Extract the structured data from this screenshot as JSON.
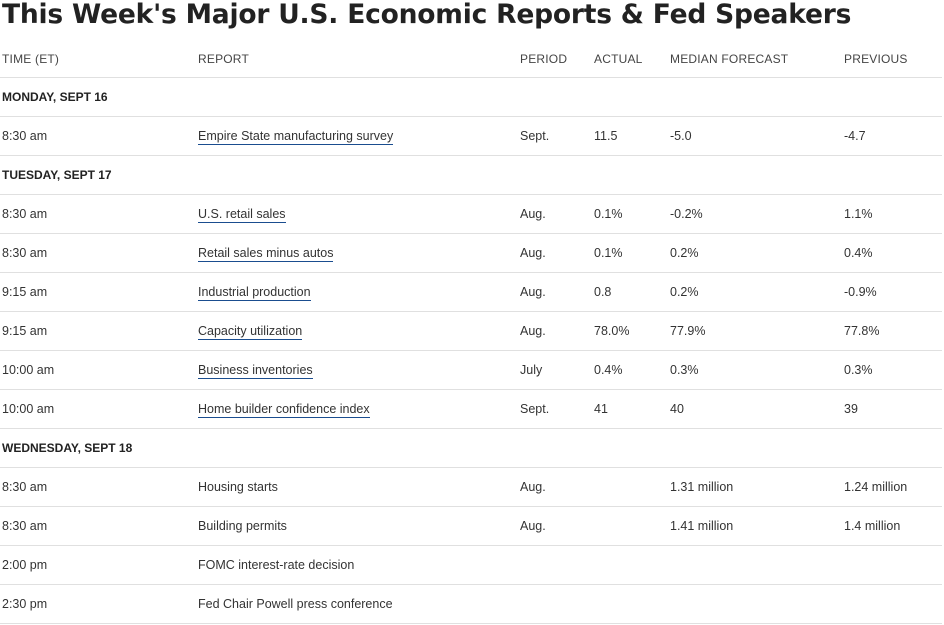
{
  "title": "This Week's Major U.S. Economic Reports & Fed Speakers",
  "columns": {
    "time": "TIME (ET)",
    "report": "REPORT",
    "period": "PERIOD",
    "actual": "ACTUAL",
    "median": "MEDIAN FORECAST",
    "previous": "PREVIOUS"
  },
  "days": [
    {
      "label": "MONDAY, SEPT 16",
      "rows": [
        {
          "time": "8:30 am",
          "report": "Empire State manufacturing survey",
          "link": true,
          "period": "Sept.",
          "actual": "11.5",
          "median": "-5.0",
          "previous": "-4.7"
        }
      ]
    },
    {
      "label": "TUESDAY, SEPT 17",
      "rows": [
        {
          "time": "8:30 am",
          "report": "U.S. retail sales",
          "link": true,
          "period": "Aug.",
          "actual": "0.1%",
          "median": "-0.2%",
          "previous": "1.1%"
        },
        {
          "time": "8:30 am",
          "report": "Retail sales minus autos",
          "link": true,
          "period": "Aug.",
          "actual": "0.1%",
          "median": "0.2%",
          "previous": "0.4%"
        },
        {
          "time": "9:15 am",
          "report": "Industrial production",
          "link": true,
          "period": "Aug.",
          "actual": "0.8",
          "median": "0.2%",
          "previous": "-0.9%"
        },
        {
          "time": "9:15 am",
          "report": "Capacity utilization",
          "link": true,
          "period": "Aug.",
          "actual": "78.0%",
          "median": "77.9%",
          "previous": "77.8%"
        },
        {
          "time": "10:00 am",
          "report": "Business inventories",
          "link": true,
          "period": "July",
          "actual": "0.4%",
          "median": "0.3%",
          "previous": "0.3%"
        },
        {
          "time": "10:00 am",
          "report": "Home builder confidence index",
          "link": true,
          "period": "Sept.",
          "actual": "41",
          "median": "40",
          "previous": "39"
        }
      ]
    },
    {
      "label": "WEDNESDAY, SEPT 18",
      "rows": [
        {
          "time": "8:30 am",
          "report": "Housing starts",
          "link": false,
          "period": "Aug.",
          "actual": "",
          "median": "1.31 million",
          "previous": "1.24 million"
        },
        {
          "time": "8:30 am",
          "report": "Building permits",
          "link": false,
          "period": "Aug.",
          "actual": "",
          "median": "1.41 million",
          "previous": "1.4 million"
        },
        {
          "time": "2:00 pm",
          "report": "FOMC interest-rate decision",
          "link": false,
          "period": "",
          "actual": "",
          "median": "",
          "previous": ""
        },
        {
          "time": "2:30 pm",
          "report": "Fed Chair Powell press conference",
          "link": false,
          "period": "",
          "actual": "",
          "median": "",
          "previous": ""
        }
      ]
    }
  ]
}
